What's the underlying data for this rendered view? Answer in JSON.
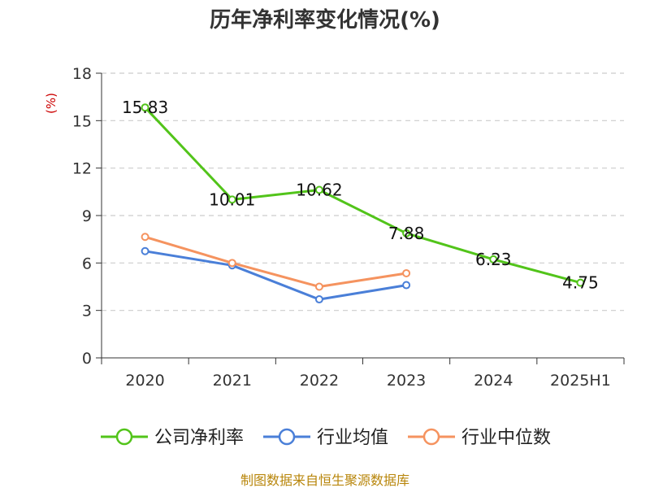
{
  "chart_data": {
    "type": "line",
    "title": "历年净利率变化情况(%)",
    "ylabel": "(%)",
    "xlabel": "",
    "categories": [
      "2020",
      "2021",
      "2022",
      "2023",
      "2024",
      "2025H1"
    ],
    "ylim": [
      0,
      18
    ],
    "yticks": [
      0,
      3,
      6,
      9,
      12,
      15,
      18
    ],
    "grid": true,
    "legend_position": "bottom",
    "series": [
      {
        "name": "公司净利率",
        "color": "#52c41a",
        "values": [
          15.83,
          10.01,
          10.62,
          7.88,
          6.23,
          4.75
        ],
        "labels": [
          "15.83",
          "10.01",
          "10.62",
          "7.88",
          "6.23",
          "4.75"
        ]
      },
      {
        "name": "行业均值",
        "color": "#4a7fd8",
        "values": [
          6.75,
          5.85,
          3.7,
          4.6,
          null,
          null
        ]
      },
      {
        "name": "行业中位数",
        "color": "#f5935f",
        "values": [
          7.65,
          6.0,
          4.5,
          5.35,
          null,
          null
        ]
      }
    ]
  },
  "footer": {
    "source": "制图数据来自恒生聚源数据库"
  }
}
